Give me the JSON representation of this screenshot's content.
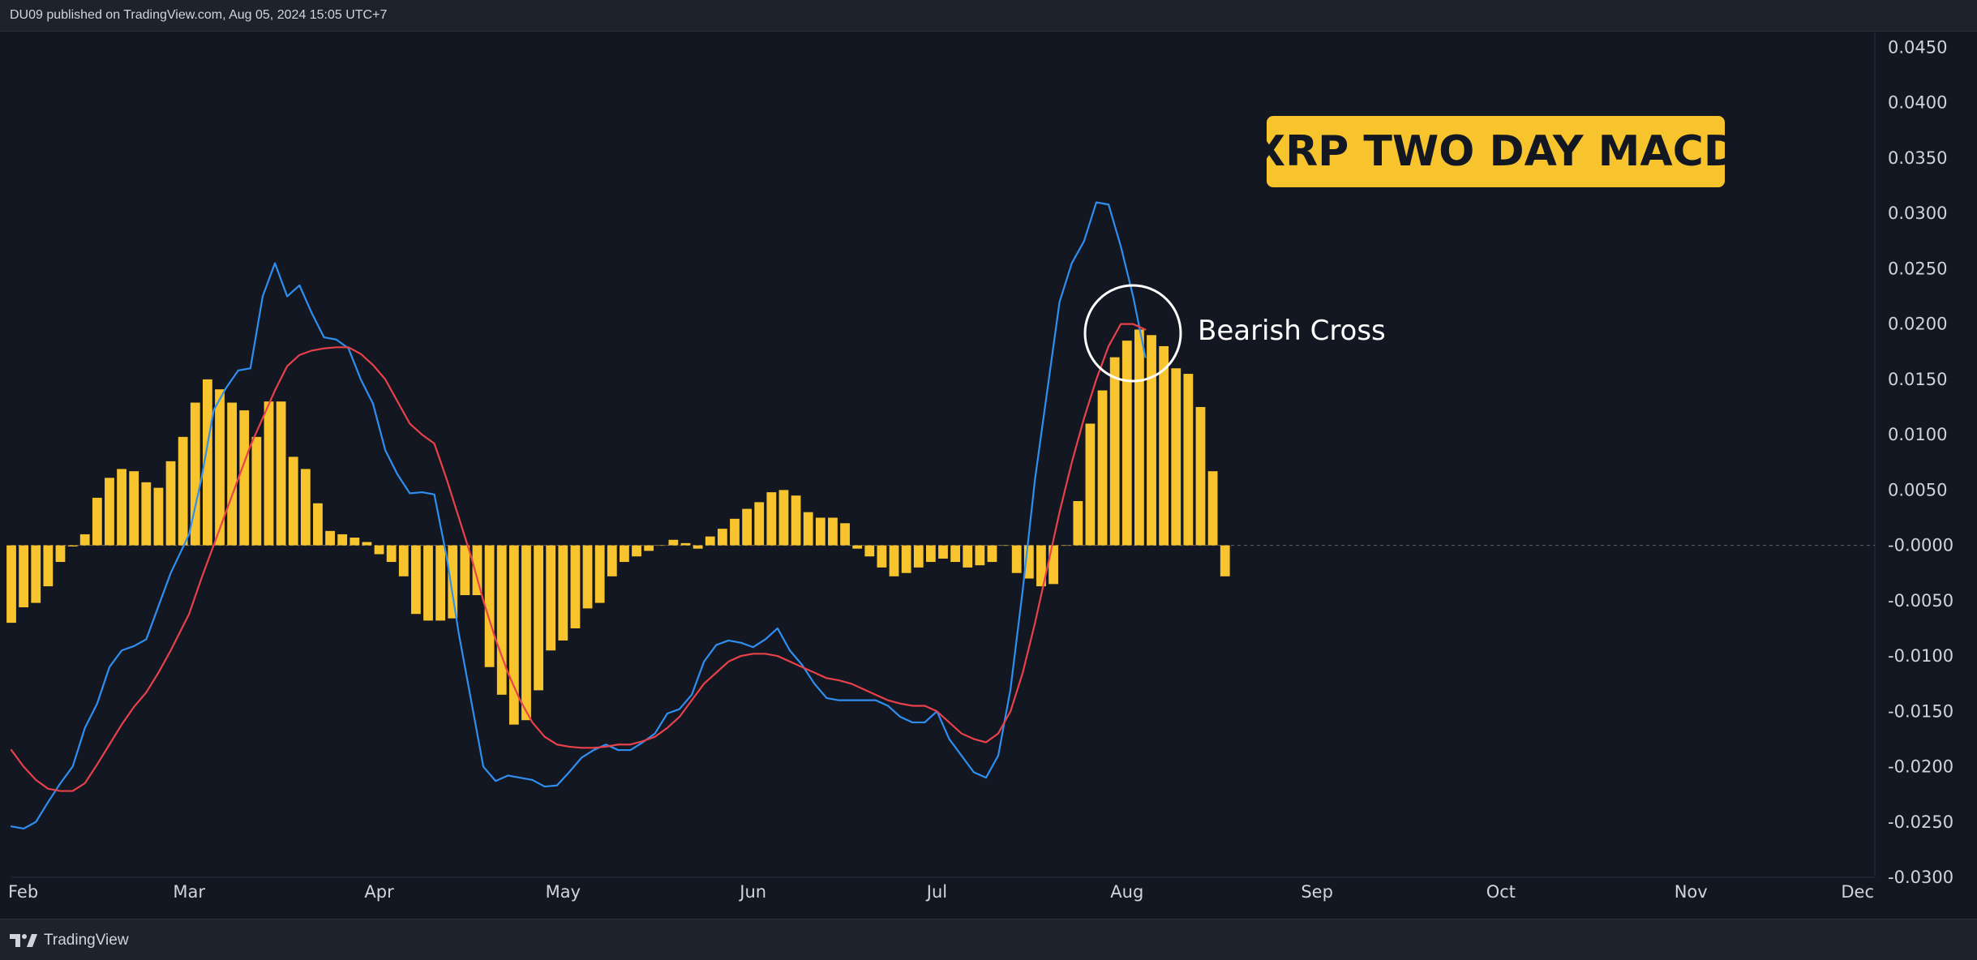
{
  "header": {
    "publish_info": "DU09 published on TradingView.com, Aug 05, 2024 15:05 UTC+7"
  },
  "footer": {
    "brand": "TradingView"
  },
  "chart_data": {
    "type": "line",
    "title": "XRP TWO DAY MACD",
    "annotation": "Bearish Cross",
    "xlabel": "",
    "ylabel": "",
    "x_ticks": [
      "Feb",
      "Mar",
      "Apr",
      "May",
      "Jun",
      "Jul",
      "Aug",
      "Sep",
      "Oct",
      "Nov",
      "Dec"
    ],
    "y_ticks": [
      "0.0450",
      "0.0400",
      "0.0350",
      "0.0300",
      "0.0250",
      "0.0200",
      "0.0150",
      "0.0100",
      "0.0050",
      "-0.0000",
      "-0.0050",
      "-0.0100",
      "-0.0150",
      "-0.0200",
      "-0.0250",
      "-0.0300"
    ],
    "ylim": [
      -0.03,
      0.0465
    ],
    "grid": false,
    "colors": {
      "macd": "#2f8ff0",
      "signal": "#e8414a",
      "histogram": "#f7c42e",
      "zero_line": "#5d606b",
      "annotation_circle": "#ffffff"
    },
    "histogram": {
      "name": "",
      "start": "2024-02-01",
      "interval_days": 2,
      "values": [
        -0.007,
        -0.0056,
        -0.0052,
        -0.0037,
        -0.0015,
        -0.0001,
        0.001,
        0.0043,
        0.0061,
        0.0069,
        0.0067,
        0.0057,
        0.0052,
        0.0076,
        0.0098,
        0.0129,
        0.015,
        0.0141,
        0.0129,
        0.0122,
        0.0098,
        0.013,
        0.013,
        0.008,
        0.0069,
        0.0038,
        0.0013,
        0.001,
        0.0007,
        0.0003,
        -0.0008,
        -0.0015,
        -0.0028,
        -0.0062,
        -0.0068,
        -0.0068,
        -0.0066,
        -0.0045,
        -0.0045,
        -0.011,
        -0.0135,
        -0.0162,
        -0.0158,
        -0.0131,
        -0.0095,
        -0.0086,
        -0.0075,
        -0.0057,
        -0.0052,
        -0.0028,
        -0.0015,
        -0.001,
        -0.0005,
        0.0,
        0.0005,
        0.0002,
        -0.0003,
        0.0008,
        0.0015,
        0.0024,
        0.0033,
        0.0039,
        0.0048,
        0.005,
        0.0045,
        0.003,
        0.0025,
        0.0025,
        0.002,
        -0.0003,
        -0.001,
        -0.002,
        -0.0028,
        -0.0025,
        -0.002,
        -0.0015,
        -0.0012,
        -0.0015,
        -0.002,
        -0.0018,
        -0.0015,
        0.0,
        -0.0025,
        -0.003,
        -0.0037,
        -0.0035,
        0.0,
        0.004,
        0.011,
        0.014,
        0.017,
        0.0185,
        0.0195,
        0.019,
        0.018,
        0.016,
        0.0155,
        0.0125,
        0.0067,
        -0.0028
      ]
    },
    "series": [
      {
        "name": "",
        "key": "macd",
        "points": [
          [
            "2024-02-01",
            -0.0254
          ],
          [
            "2024-02-03",
            -0.0256
          ],
          [
            "2024-02-05",
            -0.025
          ],
          [
            "2024-02-07",
            -0.0232
          ],
          [
            "2024-02-09",
            -0.0215
          ],
          [
            "2024-02-11",
            -0.02
          ],
          [
            "2024-02-13",
            -0.0165
          ],
          [
            "2024-02-15",
            -0.0143
          ],
          [
            "2024-02-17",
            -0.011
          ],
          [
            "2024-02-19",
            -0.0095
          ],
          [
            "2024-02-21",
            -0.0091
          ],
          [
            "2024-02-23",
            -0.0085
          ],
          [
            "2024-02-25",
            -0.0055
          ],
          [
            "2024-02-27",
            -0.0025
          ],
          [
            "2024-03-01",
            0.001
          ],
          [
            "2024-03-03",
            0.006
          ],
          [
            "2024-03-05",
            0.0122
          ],
          [
            "2024-03-07",
            0.0142
          ],
          [
            "2024-03-09",
            0.0158
          ],
          [
            "2024-03-11",
            0.016
          ],
          [
            "2024-03-13",
            0.0225
          ],
          [
            "2024-03-15",
            0.0255
          ],
          [
            "2024-03-17",
            0.0225
          ],
          [
            "2024-03-19",
            0.0235
          ],
          [
            "2024-03-21",
            0.021
          ],
          [
            "2024-03-23",
            0.0188
          ],
          [
            "2024-03-25",
            0.0186
          ],
          [
            "2024-03-27",
            0.0178
          ],
          [
            "2024-03-29",
            0.015
          ],
          [
            "2024-03-31",
            0.0128
          ],
          [
            "2024-04-02",
            0.0086
          ],
          [
            "2024-04-04",
            0.0064
          ],
          [
            "2024-04-06",
            0.0047
          ],
          [
            "2024-04-08",
            0.0048
          ],
          [
            "2024-04-10",
            0.0046
          ],
          [
            "2024-04-12",
            -0.001
          ],
          [
            "2024-04-14",
            -0.008
          ],
          [
            "2024-04-16",
            -0.014
          ],
          [
            "2024-04-18",
            -0.02
          ],
          [
            "2024-04-20",
            -0.0213
          ],
          [
            "2024-04-22",
            -0.0208
          ],
          [
            "2024-04-24",
            -0.021
          ],
          [
            "2024-04-26",
            -0.0212
          ],
          [
            "2024-04-28",
            -0.0218
          ],
          [
            "2024-04-30",
            -0.0217
          ],
          [
            "2024-05-02",
            -0.0205
          ],
          [
            "2024-05-04",
            -0.0192
          ],
          [
            "2024-05-06",
            -0.0185
          ],
          [
            "2024-05-08",
            -0.018
          ],
          [
            "2024-05-10",
            -0.0185
          ],
          [
            "2024-05-12",
            -0.0185
          ],
          [
            "2024-05-14",
            -0.0178
          ],
          [
            "2024-05-16",
            -0.017
          ],
          [
            "2024-05-18",
            -0.0152
          ],
          [
            "2024-05-20",
            -0.0148
          ],
          [
            "2024-05-22",
            -0.0135
          ],
          [
            "2024-05-24",
            -0.0105
          ],
          [
            "2024-05-26",
            -0.009
          ],
          [
            "2024-05-28",
            -0.0086
          ],
          [
            "2024-05-30",
            -0.0088
          ],
          [
            "2024-06-01",
            -0.0092
          ],
          [
            "2024-06-03",
            -0.0085
          ],
          [
            "2024-06-05",
            -0.0075
          ],
          [
            "2024-06-07",
            -0.0095
          ],
          [
            "2024-06-09",
            -0.0108
          ],
          [
            "2024-06-11",
            -0.0125
          ],
          [
            "2024-06-13",
            -0.0138
          ],
          [
            "2024-06-15",
            -0.014
          ],
          [
            "2024-06-17",
            -0.014
          ],
          [
            "2024-06-19",
            -0.014
          ],
          [
            "2024-06-21",
            -0.014
          ],
          [
            "2024-06-23",
            -0.0145
          ],
          [
            "2024-06-25",
            -0.0155
          ],
          [
            "2024-06-27",
            -0.016
          ],
          [
            "2024-06-29",
            -0.016
          ],
          [
            "2024-07-01",
            -0.015
          ],
          [
            "2024-07-03",
            -0.0175
          ],
          [
            "2024-07-05",
            -0.019
          ],
          [
            "2024-07-07",
            -0.0205
          ],
          [
            "2024-07-09",
            -0.021
          ],
          [
            "2024-07-11",
            -0.019
          ],
          [
            "2024-07-13",
            -0.013
          ],
          [
            "2024-07-15",
            -0.004
          ],
          [
            "2024-07-17",
            0.006
          ],
          [
            "2024-07-19",
            0.014
          ],
          [
            "2024-07-21",
            0.022
          ],
          [
            "2024-07-23",
            0.0255
          ],
          [
            "2024-07-25",
            0.0275
          ],
          [
            "2024-07-27",
            0.031
          ],
          [
            "2024-07-29",
            0.0308
          ],
          [
            "2024-07-31",
            0.027
          ],
          [
            "2024-08-02",
            0.0225
          ],
          [
            "2024-08-04",
            0.017
          ]
        ]
      },
      {
        "name": "",
        "key": "signal",
        "points": [
          [
            "2024-02-01",
            -0.0185
          ],
          [
            "2024-02-03",
            -0.02
          ],
          [
            "2024-02-05",
            -0.0212
          ],
          [
            "2024-02-07",
            -0.022
          ],
          [
            "2024-02-09",
            -0.0222
          ],
          [
            "2024-02-11",
            -0.0222
          ],
          [
            "2024-02-13",
            -0.0215
          ],
          [
            "2024-02-15",
            -0.0198
          ],
          [
            "2024-02-17",
            -0.018
          ],
          [
            "2024-02-19",
            -0.0162
          ],
          [
            "2024-02-21",
            -0.0146
          ],
          [
            "2024-02-23",
            -0.0133
          ],
          [
            "2024-02-25",
            -0.0115
          ],
          [
            "2024-02-27",
            -0.0095
          ],
          [
            "2024-03-01",
            -0.0062
          ],
          [
            "2024-03-03",
            -0.003
          ],
          [
            "2024-03-05",
            0.0
          ],
          [
            "2024-03-07",
            0.003
          ],
          [
            "2024-03-09",
            0.006
          ],
          [
            "2024-03-11",
            0.009
          ],
          [
            "2024-03-13",
            0.0115
          ],
          [
            "2024-03-15",
            0.014
          ],
          [
            "2024-03-17",
            0.0162
          ],
          [
            "2024-03-19",
            0.0172
          ],
          [
            "2024-03-21",
            0.0176
          ],
          [
            "2024-03-23",
            0.0178
          ],
          [
            "2024-03-25",
            0.0179
          ],
          [
            "2024-03-27",
            0.0179
          ],
          [
            "2024-03-29",
            0.0173
          ],
          [
            "2024-03-31",
            0.0163
          ],
          [
            "2024-04-02",
            0.015
          ],
          [
            "2024-04-04",
            0.013
          ],
          [
            "2024-04-06",
            0.011
          ],
          [
            "2024-04-08",
            0.01
          ],
          [
            "2024-04-10",
            0.0092
          ],
          [
            "2024-04-12",
            0.006
          ],
          [
            "2024-04-14",
            0.0025
          ],
          [
            "2024-04-16",
            -0.001
          ],
          [
            "2024-04-18",
            -0.005
          ],
          [
            "2024-04-20",
            -0.0085
          ],
          [
            "2024-04-22",
            -0.0115
          ],
          [
            "2024-04-24",
            -0.014
          ],
          [
            "2024-04-26",
            -0.016
          ],
          [
            "2024-04-28",
            -0.0173
          ],
          [
            "2024-04-30",
            -0.018
          ],
          [
            "2024-05-02",
            -0.0182
          ],
          [
            "2024-05-04",
            -0.0183
          ],
          [
            "2024-05-06",
            -0.0183
          ],
          [
            "2024-05-08",
            -0.0182
          ],
          [
            "2024-05-10",
            -0.018
          ],
          [
            "2024-05-12",
            -0.018
          ],
          [
            "2024-05-14",
            -0.0177
          ],
          [
            "2024-05-16",
            -0.0173
          ],
          [
            "2024-05-18",
            -0.0165
          ],
          [
            "2024-05-20",
            -0.0155
          ],
          [
            "2024-05-22",
            -0.014
          ],
          [
            "2024-05-24",
            -0.0125
          ],
          [
            "2024-05-26",
            -0.0115
          ],
          [
            "2024-05-28",
            -0.0105
          ],
          [
            "2024-05-30",
            -0.01
          ],
          [
            "2024-06-01",
            -0.0098
          ],
          [
            "2024-06-03",
            -0.0098
          ],
          [
            "2024-06-05",
            -0.01
          ],
          [
            "2024-06-07",
            -0.0105
          ],
          [
            "2024-06-09",
            -0.011
          ],
          [
            "2024-06-11",
            -0.0115
          ],
          [
            "2024-06-13",
            -0.012
          ],
          [
            "2024-06-15",
            -0.0122
          ],
          [
            "2024-06-17",
            -0.0125
          ],
          [
            "2024-06-19",
            -0.013
          ],
          [
            "2024-06-21",
            -0.0135
          ],
          [
            "2024-06-23",
            -0.014
          ],
          [
            "2024-06-25",
            -0.0143
          ],
          [
            "2024-06-27",
            -0.0145
          ],
          [
            "2024-06-29",
            -0.0145
          ],
          [
            "2024-07-01",
            -0.015
          ],
          [
            "2024-07-03",
            -0.016
          ],
          [
            "2024-07-05",
            -0.017
          ],
          [
            "2024-07-07",
            -0.0175
          ],
          [
            "2024-07-09",
            -0.0178
          ],
          [
            "2024-07-11",
            -0.017
          ],
          [
            "2024-07-13",
            -0.015
          ],
          [
            "2024-07-15",
            -0.0115
          ],
          [
            "2024-07-17",
            -0.007
          ],
          [
            "2024-07-19",
            -0.002
          ],
          [
            "2024-07-21",
            0.003
          ],
          [
            "2024-07-23",
            0.0075
          ],
          [
            "2024-07-25",
            0.0115
          ],
          [
            "2024-07-27",
            0.015
          ],
          [
            "2024-07-29",
            0.018
          ],
          [
            "2024-07-31",
            0.02
          ],
          [
            "2024-08-02",
            0.02
          ],
          [
            "2024-08-04",
            0.0195
          ]
        ]
      }
    ],
    "x_axis": {
      "type": "date",
      "min": "2024-02-01",
      "max": "2024-12-01",
      "tick_dates": [
        "2024-02-01",
        "2024-03-01",
        "2024-04-01",
        "2024-05-01",
        "2024-06-01",
        "2024-07-01",
        "2024-08-01",
        "2024-09-01",
        "2024-10-01",
        "2024-11-01",
        "2024-12-01"
      ]
    }
  }
}
